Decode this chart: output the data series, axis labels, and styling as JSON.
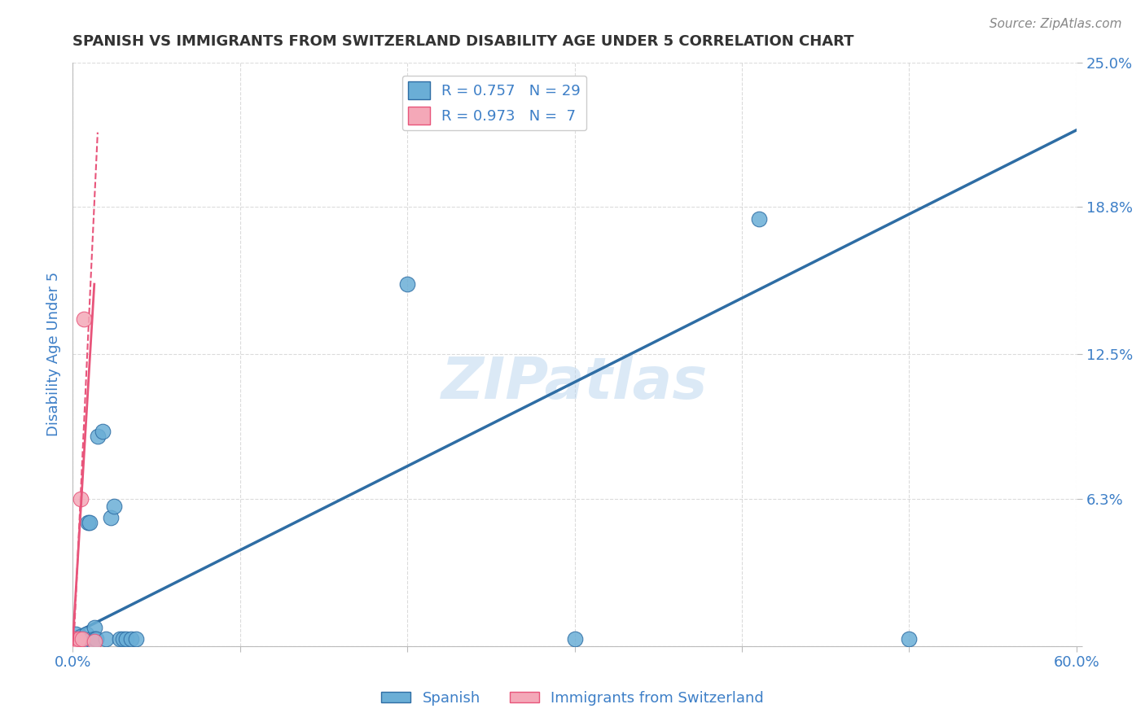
{
  "title": "SPANISH VS IMMIGRANTS FROM SWITZERLAND DISABILITY AGE UNDER 5 CORRELATION CHART",
  "source": "Source: ZipAtlas.com",
  "ylabel_label": "Disability Age Under 5",
  "watermark": "ZIPatlas",
  "xlim": [
    0.0,
    0.6
  ],
  "ylim": [
    0.0,
    0.25
  ],
  "xticks": [
    0.0,
    0.1,
    0.2,
    0.3,
    0.4,
    0.5,
    0.6
  ],
  "yticks": [
    0.0,
    0.063,
    0.125,
    0.188,
    0.25
  ],
  "yticklabels": [
    "",
    "6.3%",
    "12.5%",
    "18.8%",
    "25.0%"
  ],
  "blue_color": "#6aaed6",
  "pink_color": "#f4a8b8",
  "blue_line_color": "#2e6da4",
  "pink_line_color": "#e8547a",
  "blue_R": 0.757,
  "blue_N": 29,
  "pink_R": 0.973,
  "pink_N": 7,
  "grid_color": "#cccccc",
  "background_color": "#ffffff",
  "title_color": "#333333",
  "axis_label_color": "#3d7fc7",
  "tick_color": "#3d7fc7",
  "blue_points_x": [
    0.002,
    0.004,
    0.005,
    0.005,
    0.006,
    0.007,
    0.008,
    0.008,
    0.009,
    0.01,
    0.011,
    0.012,
    0.013,
    0.013,
    0.014,
    0.015,
    0.018,
    0.02,
    0.023,
    0.025,
    0.028,
    0.03,
    0.032,
    0.035,
    0.038,
    0.2,
    0.3,
    0.41,
    0.5
  ],
  "blue_points_y": [
    0.005,
    0.003,
    0.002,
    0.004,
    0.003,
    0.003,
    0.002,
    0.005,
    0.053,
    0.053,
    0.003,
    0.002,
    0.008,
    0.003,
    0.003,
    0.09,
    0.092,
    0.003,
    0.055,
    0.06,
    0.003,
    0.003,
    0.003,
    0.003,
    0.003,
    0.155,
    0.003,
    0.183,
    0.003
  ],
  "pink_points_x": [
    0.002,
    0.003,
    0.004,
    0.005,
    0.006,
    0.007,
    0.013
  ],
  "pink_points_y": [
    0.003,
    0.002,
    0.003,
    0.063,
    0.003,
    0.14,
    0.002
  ],
  "blue_line_y_intercept": 0.005,
  "blue_line_slope": 0.36,
  "legend_label_blue": "Spanish",
  "legend_label_pink": "Immigrants from Switzerland"
}
